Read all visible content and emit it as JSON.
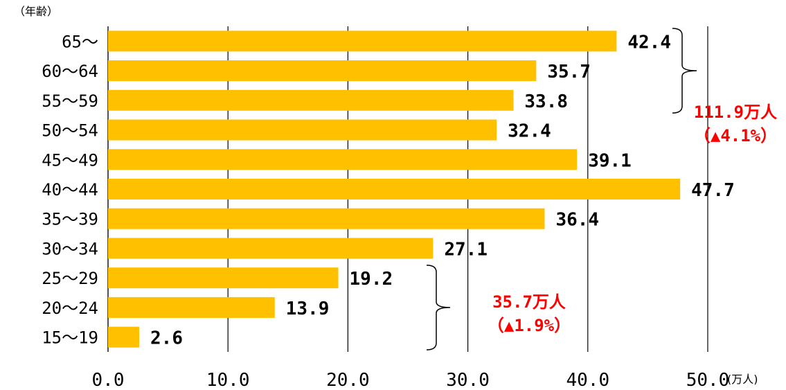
{
  "chart_data": {
    "type": "bar",
    "orientation": "horizontal",
    "y_unit_label": "（年齢）",
    "x_unit_label": "(万人)",
    "categories": [
      "65～",
      "60～64",
      "55～59",
      "50～54",
      "45～49",
      "40～44",
      "35～39",
      "30～34",
      "25～29",
      "20～24",
      "15～19"
    ],
    "values": [
      42.4,
      35.7,
      33.8,
      32.4,
      39.1,
      47.7,
      36.4,
      27.1,
      19.2,
      13.9,
      2.6
    ],
    "value_labels": [
      "42.4",
      "35.7",
      "33.8",
      "32.4",
      "39.1",
      "47.7",
      "36.4",
      "27.1",
      "19.2",
      "13.9",
      "2.6"
    ],
    "xlim": [
      0,
      50
    ],
    "x_ticks": [
      0,
      10,
      20,
      30,
      40,
      50
    ],
    "x_tick_labels": [
      "0.0",
      "10.0",
      "20.0",
      "30.0",
      "40.0",
      "50.0"
    ],
    "grid": "vertical",
    "bar_color": "#ffc000",
    "annotations": [
      {
        "group": [
          "55～59",
          "60～64",
          "65～"
        ],
        "line1": "111.9万人",
        "line2": "（▲4.1%）",
        "color": "#ff0000"
      },
      {
        "group": [
          "15～19",
          "20～24",
          "25～29"
        ],
        "line1": "35.7万人",
        "line2": "（▲1.9%）",
        "color": "#ff0000"
      }
    ]
  }
}
